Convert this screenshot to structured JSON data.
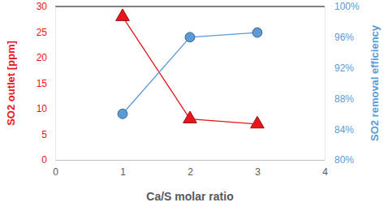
{
  "chart_data": {
    "type": "line",
    "x": [
      1,
      2,
      3
    ],
    "xlabel": "Ca/S molar ratio",
    "ylabel": "SO2 outlet [ppm]",
    "y2label": "SO2 removal efficiency",
    "xlim": [
      0,
      4
    ],
    "xticks": [
      0,
      1,
      2,
      3,
      4
    ],
    "ylim": [
      0,
      30
    ],
    "yticks": [
      0,
      5,
      10,
      15,
      20,
      25,
      30
    ],
    "y2lim": [
      80,
      100
    ],
    "y2ticks": [
      {
        "value": 80,
        "label": "80%"
      },
      {
        "value": 84,
        "label": "84%"
      },
      {
        "value": 88,
        "label": "88%"
      },
      {
        "value": 92,
        "label": "92%"
      },
      {
        "value": 96,
        "label": "96%"
      },
      {
        "value": 100,
        "label": "100%"
      }
    ],
    "grid": false,
    "series": [
      {
        "color": "#e8151b",
        "marker": "triangle",
        "values": [
          28,
          8,
          7
        ]
      },
      {
        "color": "#5b9bd5",
        "marker": "circle",
        "axis": "y2",
        "values": [
          86,
          96,
          96.6
        ]
      }
    ]
  }
}
